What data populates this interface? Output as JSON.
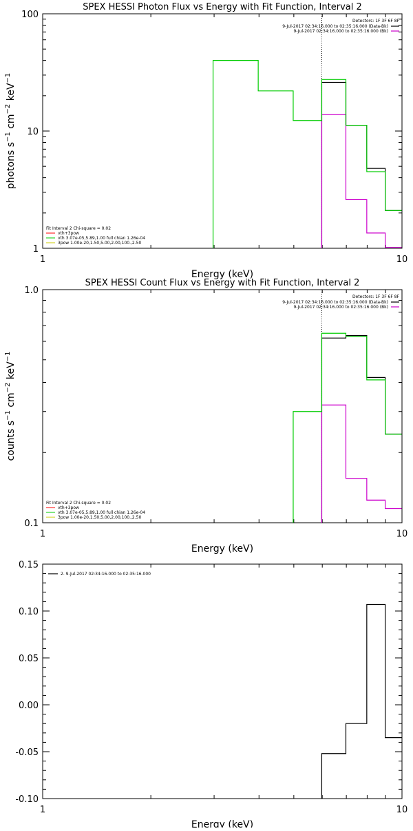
{
  "chart_data": [
    {
      "type": "line",
      "title": "SPEX HESSI Photon Flux vs Energy with Fit Function, Interval 2",
      "xlabel": "Energy (keV)",
      "ylabel": "photons s-1 cm-2 keV-1",
      "ylabel_parts": {
        "base": "photons s",
        "e1": "−1",
        "mid": " cm",
        "e2": "−2",
        "mid2": " keV",
        "e3": "−1"
      },
      "xscale": "log",
      "yscale": "log",
      "xlim": [
        1,
        10
      ],
      "ylim": [
        1,
        100
      ],
      "x_ticks": [
        {
          "v": 1,
          "label": "1"
        },
        {
          "v": 10,
          "label": "10"
        }
      ],
      "y_ticks": [
        {
          "v": 1,
          "label": "1"
        },
        {
          "v": 10,
          "label": "10"
        },
        {
          "v": 100,
          "label": "100"
        }
      ],
      "vline": 5.98,
      "legend_right": {
        "header": "Detectors: 1F 3F 6F 8F",
        "lines": [
          {
            "text": "9-Jul-2017 02:34:16.000 to 02:35:16.000 (Data-Bk)",
            "color": "#000000"
          },
          {
            "text": "9-Jul-2017 02:34:16.000 to 02:35:16.000 (Bk)",
            "color": "#cc00cc"
          }
        ]
      },
      "legend_left": [
        {
          "text": "Fit Interval 2   Chi-square = 0.02",
          "color": ""
        },
        {
          "text": "vth+3pow",
          "color": "#ff0000"
        },
        {
          "text": "vth 3.07e-05,5.89,1.00   full chian 1.26e-04",
          "color": "#00cc00"
        },
        {
          "text": "3pow 1.00e-20,1.50,5.00,2.00,100.,2.50",
          "color": "#cccc00"
        }
      ],
      "series": [
        {
          "name": "Data-Bk",
          "color": "#000000",
          "edges": [
            5.98,
            6.98,
            7.98,
            8.98,
            9.98
          ],
          "values": [
            26.0,
            11.2,
            4.8,
            2.1
          ]
        },
        {
          "name": "Bk",
          "color": "#cc00cc",
          "edges": [
            5.98,
            6.98,
            7.98,
            8.98,
            9.98
          ],
          "values": [
            13.8,
            2.6,
            1.35,
            1.02
          ]
        },
        {
          "name": "Fit",
          "color": "#00cc00",
          "edges": [
            2.98,
            3.98,
            4.98,
            5.98,
            6.98,
            7.98,
            8.98,
            9.98
          ],
          "values": [
            40.0,
            22.0,
            12.3,
            27.5,
            11.2,
            4.5,
            2.1
          ]
        }
      ]
    },
    {
      "type": "line",
      "title": "SPEX HESSI Count Flux vs Energy with Fit Function, Interval 2",
      "xlabel": "Energy (keV)",
      "ylabel": "counts s-1 cm-2 keV-1",
      "ylabel_parts": {
        "base": "counts s",
        "e1": "−1",
        "mid": " cm",
        "e2": "−2",
        "mid2": " keV",
        "e3": "−1"
      },
      "xscale": "log",
      "yscale": "log",
      "xlim": [
        1,
        10
      ],
      "ylim": [
        0.1,
        1.0
      ],
      "x_ticks": [
        {
          "v": 1,
          "label": "1"
        },
        {
          "v": 10,
          "label": "10"
        }
      ],
      "y_ticks": [
        {
          "v": 0.1,
          "label": "0.1"
        },
        {
          "v": 1.0,
          "label": "1.0"
        }
      ],
      "vline": 5.98,
      "legend_right": {
        "header": "Detectors: 1F 3F 6F 8F",
        "lines": [
          {
            "text": "9-Jul-2017 02:34:16.000 to 02:35:16.000 (Data-Bk)",
            "color": "#000000"
          },
          {
            "text": "9-Jul-2017 02:34:16.000 to 02:35:16.000 (Bk)",
            "color": "#cc00cc"
          }
        ]
      },
      "legend_left": [
        {
          "text": "Fit Interval 2   Chi-square = 0.02",
          "color": ""
        },
        {
          "text": "vth+3pow",
          "color": "#ff0000"
        },
        {
          "text": "vth 3.07e-05,5.89,1.00   full chian 1.26e-04",
          "color": "#00cc00"
        },
        {
          "text": "3pow 1.00e-20,1.50,5.00,2.00,100.,2.50",
          "color": "#cccc00"
        }
      ],
      "series": [
        {
          "name": "Data-Bk",
          "color": "#000000",
          "edges": [
            5.98,
            6.98,
            7.98,
            8.98,
            9.98
          ],
          "values": [
            0.62,
            0.635,
            0.42,
            0.24
          ]
        },
        {
          "name": "Bk",
          "color": "#cc00cc",
          "edges": [
            5.98,
            6.98,
            7.98,
            8.98,
            9.98
          ],
          "values": [
            0.32,
            0.155,
            0.125,
            0.115
          ]
        },
        {
          "name": "Fit",
          "color": "#00cc00",
          "edges": [
            4.98,
            5.98,
            6.98,
            7.98,
            8.98,
            9.98
          ],
          "values": [
            0.3,
            0.65,
            0.63,
            0.41,
            0.24
          ]
        }
      ]
    },
    {
      "type": "line",
      "title": "",
      "xlabel": "Energy (keV)",
      "ylabel": "",
      "xscale": "log",
      "yscale": "linear",
      "xlim": [
        1,
        10
      ],
      "ylim": [
        -0.1,
        0.15
      ],
      "x_ticks": [
        {
          "v": 1,
          "label": "1"
        },
        {
          "v": 10,
          "label": "10"
        }
      ],
      "y_ticks": [
        {
          "v": 0.15,
          "label": "0.15"
        },
        {
          "v": 0.1,
          "label": "0.10"
        },
        {
          "v": 0.05,
          "label": "0.05"
        },
        {
          "v": 0.0,
          "label": "0.00"
        },
        {
          "v": -0.05,
          "label": "-0.05"
        },
        {
          "v": -0.1,
          "label": "-0.10"
        }
      ],
      "legend_left_top": [
        {
          "text": "2.  9-Jul-2017 02:34:16.000 to 02:35:16.000",
          "color": "#000000"
        }
      ],
      "series": [
        {
          "name": "",
          "color": "#000000",
          "edges": [
            5.98,
            6.98,
            7.98,
            8.98,
            9.98
          ],
          "values": [
            -0.052,
            -0.02,
            0.107,
            -0.035
          ]
        }
      ]
    }
  ]
}
